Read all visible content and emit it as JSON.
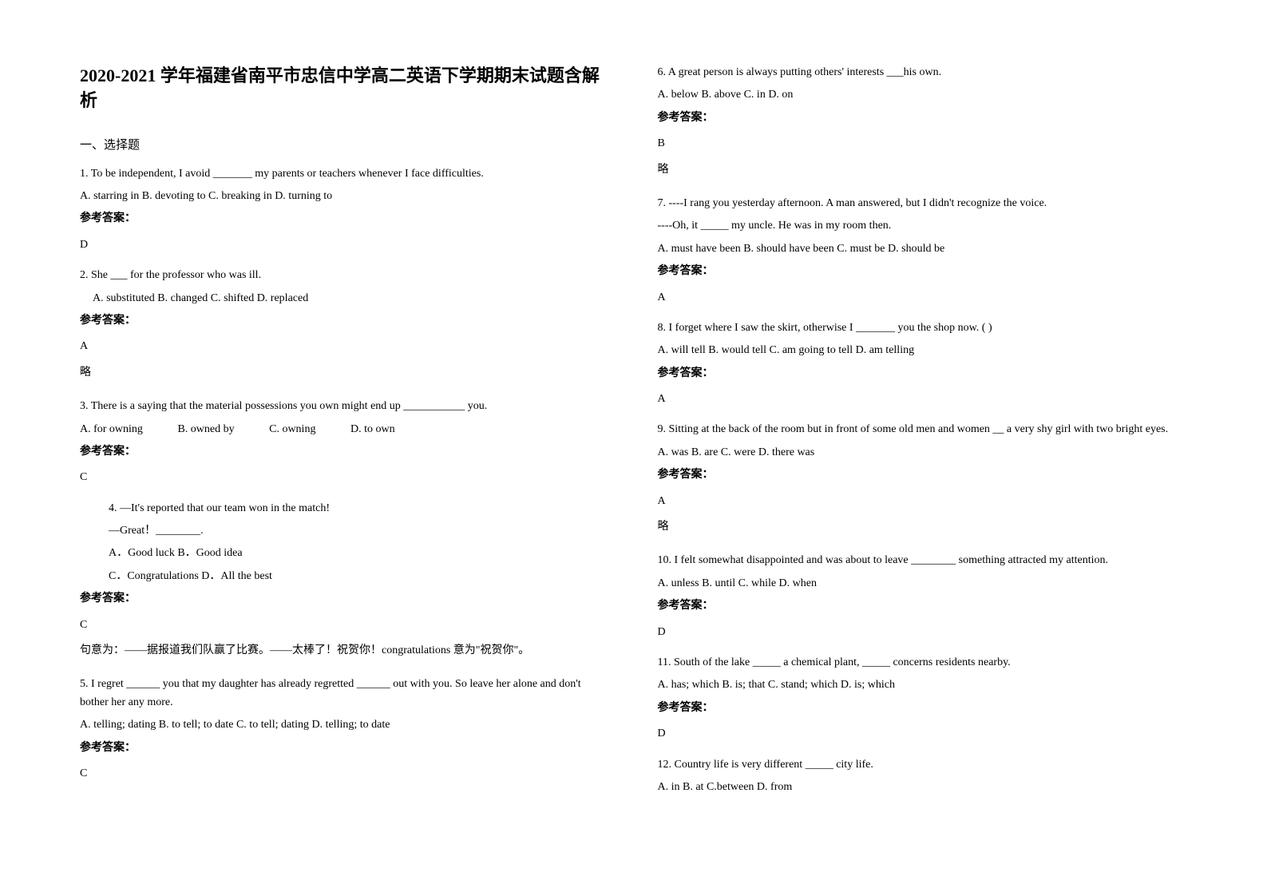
{
  "title": "2020-2021 学年福建省南平市忠信中学高二英语下学期期末试题含解析",
  "section_header": "一、选择题",
  "left_column": {
    "q1": {
      "text": "1. To be independent, I avoid _______ my parents or teachers whenever I face difficulties.",
      "options": "A. starring in    B. devoting to    C. breaking in    D. turning to",
      "answer_label": "参考答案：",
      "answer": "D"
    },
    "q2": {
      "text": "2. She ___ for the professor who was ill.",
      "options": "A. substituted     B. changed        C. shifted     D. replaced",
      "answer_label": "参考答案：",
      "answer": "A",
      "note": "略"
    },
    "q3": {
      "text": "3. There is a saying that the material possessions you own might end up ___________ you.",
      "opt_a": "A. for owning",
      "opt_b": "B. owned by",
      "opt_c": "C. owning",
      "opt_d": "D. to own",
      "answer_label": "参考答案：",
      "answer": "C"
    },
    "q4": {
      "text": "4. —It's reported that our team won in the match!",
      "text2": "—Great！________.",
      "options1": "A．Good luck    B．Good idea",
      "options2": "C．Congratulations      D．All the best",
      "answer_label": "参考答案：",
      "answer": "C",
      "explanation": "句意为：——据报道我们队赢了比赛。——太棒了！祝贺你！congratulations 意为\"祝贺你\"。"
    },
    "q5": {
      "text": "   5. I regret ______ you that my daughter has already regretted ______ out with you. So leave her alone and don't bother her any more.",
      "options": "A. telling; dating     B. to tell; to date     C. to tell; dating      D. telling; to date",
      "answer_label": "参考答案：",
      "answer": "C"
    }
  },
  "right_column": {
    "q6": {
      "text": "6. A great person is always putting others' interests ___his own.",
      "options": "  A. below    B. above    C. in    D. on",
      "answer_label": "参考答案：",
      "answer": "B",
      "note": "略"
    },
    "q7": {
      "text": "7. ----I rang you yesterday afternoon. A man answered, but I didn't recognize the voice.",
      "text2": "----Oh, it _____ my uncle. He was in my room then.",
      "options": "A. must have been    B. should have been     C. must be    D. should be",
      "answer_label": "参考答案：",
      "answer": "A"
    },
    "q8": {
      "text": "8. I forget where I saw the skirt, otherwise I _______ you the shop now. (  )",
      "options": "A. will tell       B. would tell        C. am going to tell     D. am telling",
      "answer_label": "参考答案：",
      "answer": "A"
    },
    "q9": {
      "text": "9. Sitting at the back of the room but in front of some old men and women __ a very shy girl with two bright eyes.",
      "options": "    A. was            B. are            C. were            D. there was",
      "answer_label": "参考答案：",
      "answer": "A",
      "note": "略"
    },
    "q10": {
      "text": "10. I felt somewhat disappointed and was about to leave ________  something attracted my attention.",
      "options": "A. unless       B. until         C. while          D. when",
      "answer_label": "参考答案：",
      "answer": "D"
    },
    "q11": {
      "text": "11. South of the lake _____ a chemical plant, _____ concerns residents nearby.",
      "options": "    A. has; which    B. is; that      C. stand; which      D. is; which",
      "answer_label": "参考答案：",
      "answer": "D"
    },
    "q12": {
      "text": "12. Country life is very different _____ city life.",
      "options": "        A. in    B. at    C.between    D. from"
    }
  }
}
